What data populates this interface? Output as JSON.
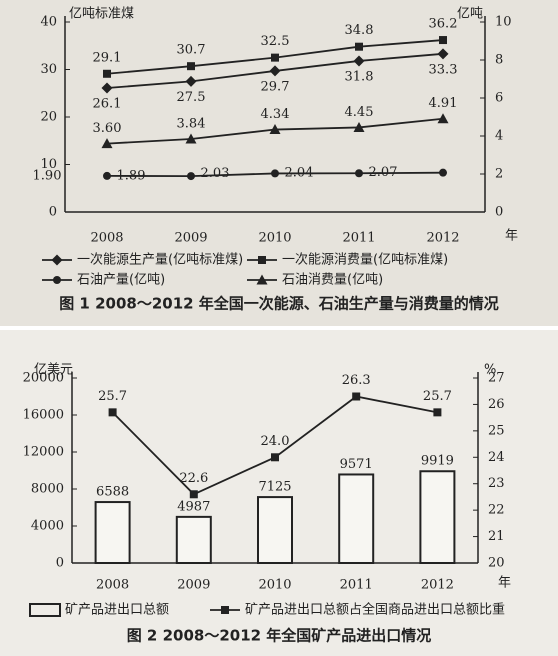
{
  "chart_data": [
    {
      "type": "line",
      "title": "图 1  2008～2012 年全国一次能源、石油生产量与消费量的情况",
      "y_label": "亿吨标准煤",
      "y2_label": "亿吨",
      "x_label": "年",
      "categories": [
        "2008",
        "2009",
        "2010",
        "2011",
        "2012"
      ],
      "ylim": [
        0,
        40
      ],
      "yticks": [
        0,
        10,
        20,
        30,
        40
      ],
      "y2lim": [
        0,
        10
      ],
      "y2ticks": [
        0,
        2,
        4,
        6,
        8,
        10
      ],
      "series": [
        {
          "name": "一次能源生产量(亿吨标准煤)",
          "color": "#222",
          "marker": "diamond",
          "axis": "y",
          "values": [
            26.1,
            27.5,
            29.7,
            31.8,
            33.3
          ]
        },
        {
          "name": "一次能源消费量(亿吨标准煤)",
          "color": "#222",
          "marker": "square",
          "axis": "y",
          "values": [
            29.1,
            30.7,
            32.5,
            34.8,
            36.2
          ]
        },
        {
          "name": "石油产量(亿吨)",
          "color": "#222",
          "marker": "circle",
          "axis": "y2",
          "values": [
            1.9,
            1.89,
            2.03,
            2.04,
            2.07
          ],
          "value_labels": [
            "1.90",
            "1.89",
            "2.03",
            "2.04",
            "2.07"
          ]
        },
        {
          "name": "石油消费量(亿吨)",
          "color": "#222",
          "marker": "triangle",
          "axis": "y2",
          "values": [
            3.6,
            3.84,
            4.34,
            4.45,
            4.91
          ],
          "value_labels": [
            "3.60",
            "3.84",
            "4.34",
            "4.45",
            "4.91"
          ]
        }
      ]
    },
    {
      "type": "bar",
      "title": "图 2  2008～2012 年全国矿产品进出口情况",
      "y_label": "亿美元",
      "y2_label": "%",
      "x_label": "年",
      "categories": [
        "2008",
        "2009",
        "2010",
        "2011",
        "2012"
      ],
      "ylim": [
        0,
        20000
      ],
      "yticks": [
        0,
        4000,
        8000,
        12000,
        16000,
        20000
      ],
      "y2lim": [
        20,
        27
      ],
      "y2ticks": [
        20,
        21,
        22,
        23,
        24,
        25,
        26,
        27
      ],
      "series": [
        {
          "name": "矿产品进出口总额",
          "type": "bar",
          "color": "#222",
          "axis": "y",
          "values": [
            6588,
            4987,
            7125,
            9571,
            9919
          ]
        },
        {
          "name": "矿产品进出口总额占全国商品进出口总额比重",
          "type": "line",
          "color": "#222",
          "marker": "square",
          "axis": "y2",
          "values": [
            25.7,
            22.6,
            24,
            26.3,
            25.7
          ],
          "value_labels": [
            "25.7",
            "22.6",
            "24.0",
            "26.3",
            "25.7"
          ]
        }
      ]
    }
  ]
}
